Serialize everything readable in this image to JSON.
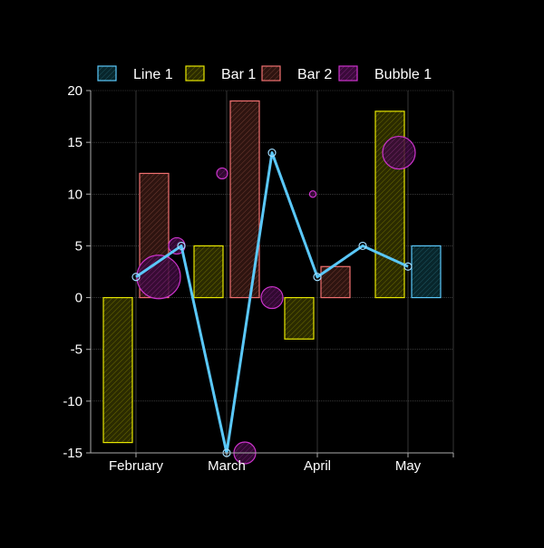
{
  "chart_data": {
    "type": "bar",
    "categories": [
      "February",
      "March",
      "April",
      "May"
    ],
    "ylim": [
      -15,
      20
    ],
    "yticks": [
      20,
      15,
      10,
      5,
      0,
      -5,
      -10,
      -15
    ],
    "xlim": [
      -0.5,
      3.5
    ],
    "grid": true,
    "legend_position": "top",
    "legend": [
      {
        "label": "Line 1",
        "kind": "line"
      },
      {
        "label": "Bar 1",
        "kind": "bar1"
      },
      {
        "label": "Bar 2",
        "kind": "bar2"
      },
      {
        "label": "Bubble 1",
        "kind": "bubble"
      }
    ],
    "line_series": {
      "name": "Line 1",
      "color": "#5ac8fa",
      "points": [
        {
          "x": 0,
          "y": 2
        },
        {
          "x": 0.5,
          "y": 5
        },
        {
          "x": 1,
          "y": -15
        },
        {
          "x": 1.5,
          "y": 14
        },
        {
          "x": 2,
          "y": 2
        },
        {
          "x": 2.5,
          "y": 5
        },
        {
          "x": 3,
          "y": 3
        }
      ]
    },
    "bar1_series": {
      "name": "Bar 1",
      "color": "#e6e600",
      "points": [
        {
          "x": -0.2,
          "y": -14
        },
        {
          "x": 0.8,
          "y": 5
        },
        {
          "x": 1.8,
          "y": -4
        },
        {
          "x": 2.8,
          "y": 18
        }
      ]
    },
    "bar2_series": {
      "name": "Bar 2",
      "color": "#f07070",
      "points": [
        {
          "x": 0.2,
          "y": 12
        },
        {
          "x": 1.2,
          "y": 19
        },
        {
          "x": 2.2,
          "y": 3
        }
      ]
    },
    "extra_bar": {
      "x": 3.2,
      "y": 5,
      "color": "#5ac8fa"
    },
    "bubble_series": {
      "name": "Bubble 1",
      "color": "#cc33cc",
      "points": [
        {
          "x": 0.25,
          "y": 2,
          "r": 4
        },
        {
          "x": 0.45,
          "y": 5,
          "r": 1.5
        },
        {
          "x": 0.95,
          "y": 12,
          "r": 1
        },
        {
          "x": 1.2,
          "y": -15,
          "r": 2
        },
        {
          "x": 1.5,
          "y": 0,
          "r": 2
        },
        {
          "x": 1.95,
          "y": 10,
          "r": 0.6
        },
        {
          "x": 2.9,
          "y": 14,
          "r": 3
        }
      ]
    }
  }
}
